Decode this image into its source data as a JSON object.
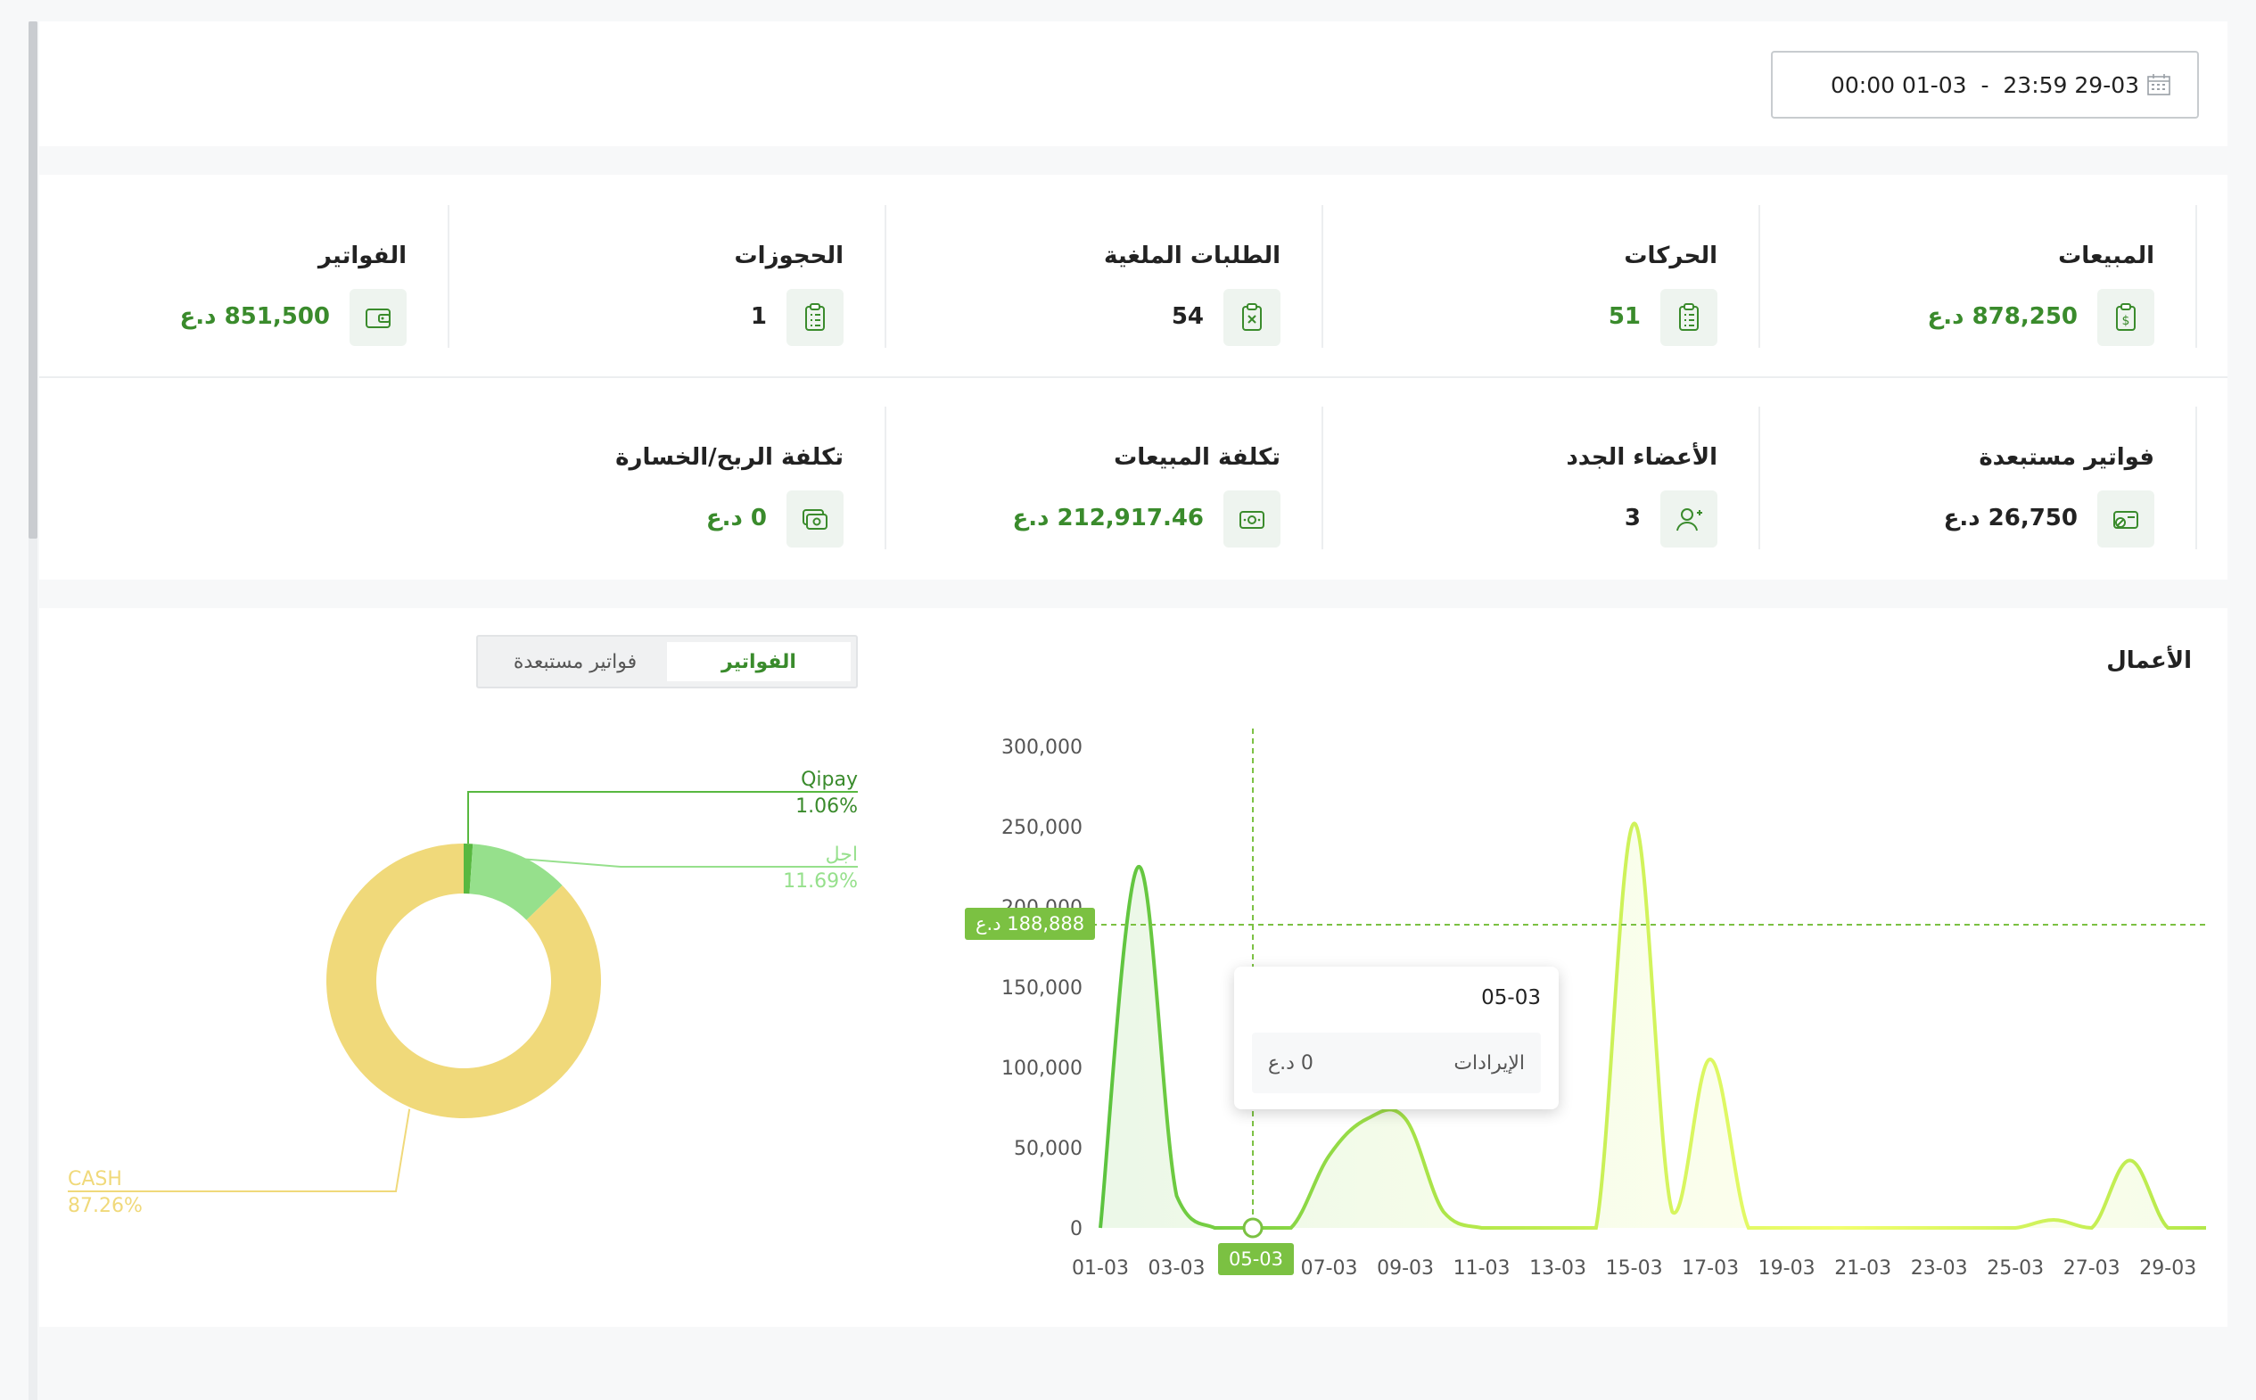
{
  "date_range": {
    "value": "00:00 01-03  -  23:59 29-03",
    "icon": "calendar-icon"
  },
  "stats": [
    {
      "title": "المبيعات",
      "value": "878,250 د.ع",
      "icon": "money-clipboard-icon",
      "color": "green"
    },
    {
      "title": "الحركات",
      "value": "51",
      "icon": "clipboard-list-icon",
      "color": "green"
    },
    {
      "title": "الطلبات الملغية",
      "value": "54",
      "icon": "clipboard-x-icon",
      "color": "dark"
    },
    {
      "title": "الحجوزات",
      "value": "1",
      "icon": "clipboard-list-icon",
      "color": "dark"
    },
    {
      "title": "الفواتير",
      "value": "851,500 د.ع",
      "icon": "wallet-icon",
      "color": "green"
    },
    {
      "title": "فواتير مستبعدة",
      "value": "26,750 د.ع",
      "icon": "cash-excluded-icon",
      "color": "dark"
    },
    {
      "title": "الأعضاء الجدد",
      "value": "3",
      "icon": "user-add-icon",
      "color": "dark"
    },
    {
      "title": "تكلفة المبيعات",
      "value": "212,917.46 د.ع",
      "icon": "banknote-icon",
      "color": "green"
    },
    {
      "title": "تكلفة الربح/الخسارة",
      "value": "0 د.ع",
      "icon": "banknotes-icon",
      "color": "green"
    }
  ],
  "works": {
    "title": "الأعمال",
    "tabs": [
      {
        "label": "الفواتير",
        "active": true
      },
      {
        "label": "فواتير مستبعدة",
        "active": false
      }
    ]
  },
  "tooltip": {
    "date": "05-03",
    "series": "الإيرادات",
    "value": "0 د.ع"
  },
  "crosshair": {
    "y_label": "188,888 د.ع",
    "x_label": "05-03"
  },
  "chart_data": [
    {
      "type": "pie",
      "variant": "donut",
      "slices": [
        {
          "label": "CASH",
          "percent": "87.26%",
          "value": 87.26,
          "color": "#f0d97a"
        },
        {
          "label": "اجل",
          "percent": "11.69%",
          "value": 11.69,
          "color": "#96e08c"
        },
        {
          "label": "Qipay",
          "percent": "1.06%",
          "value": 1.06,
          "color": "#58b840"
        }
      ]
    },
    {
      "type": "area",
      "x": [
        "01-03",
        "02-03",
        "03-03",
        "04-03",
        "05-03",
        "06-03",
        "07-03",
        "08-03",
        "09-03",
        "10-03",
        "11-03",
        "12-03",
        "13-03",
        "14-03",
        "15-03",
        "16-03",
        "17-03",
        "18-03",
        "19-03",
        "20-03",
        "21-03",
        "22-03",
        "23-03",
        "24-03",
        "25-03",
        "26-03",
        "27-03",
        "28-03",
        "29-03",
        "30-03"
      ],
      "x_ticks": [
        "01-03",
        "03-03",
        "05-03",
        "07-03",
        "09-03",
        "11-03",
        "13-03",
        "15-03",
        "17-03",
        "19-03",
        "21-03",
        "23-03",
        "25-03",
        "27-03",
        "29-03"
      ],
      "series": [
        {
          "values": [
            0,
            225000,
            20000,
            0,
            0,
            0,
            45000,
            68000,
            68000,
            10000,
            0,
            0,
            0,
            0,
            252000,
            10000,
            105000,
            0,
            0,
            0,
            0,
            0,
            0,
            0,
            0,
            5000,
            0,
            42000,
            0,
            0
          ]
        }
      ],
      "y_ticks": [
        "0",
        "50,000",
        "100,000",
        "150,000",
        "200,000",
        "250,000",
        "300,000"
      ],
      "ylim": [
        0,
        300000
      ],
      "gradient_colors": [
        "#5cc33f",
        "#b3e84a",
        "#f2ff6e",
        "#b3e84a"
      ]
    }
  ]
}
